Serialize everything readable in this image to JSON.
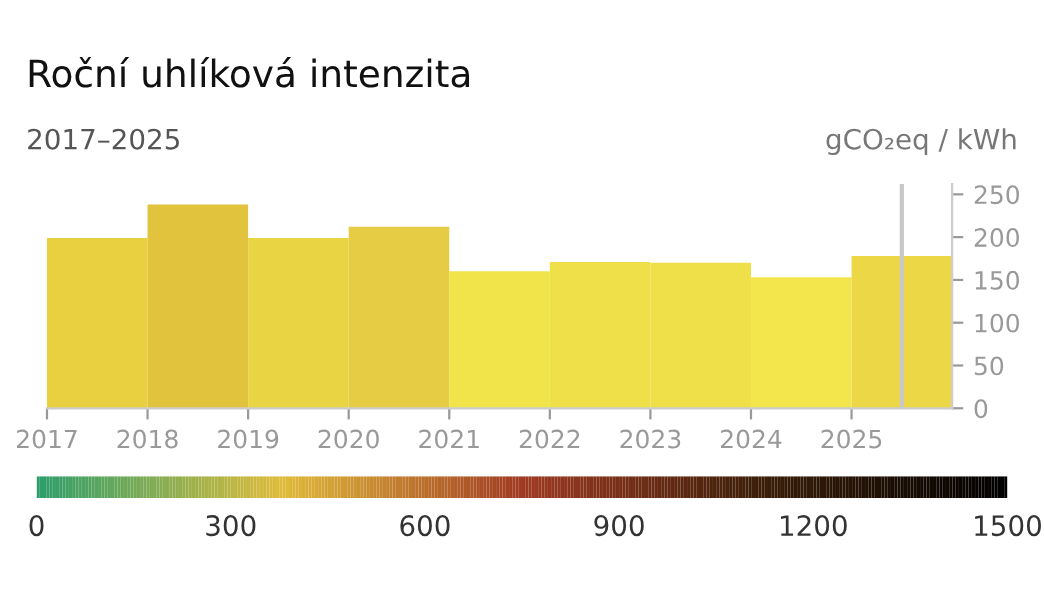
{
  "chart_data": {
    "type": "histogram",
    "title": "Roční uhlíková intenzita",
    "subtitle": "2017–2025",
    "ylabel": "gCO₂eq / kWh",
    "bins": [
      2017,
      2018,
      2019,
      2020,
      2021,
      2022,
      2023,
      2024,
      2025,
      2026
    ],
    "values": [
      199,
      238,
      199,
      212,
      160,
      171,
      170,
      153,
      178
    ],
    "colors": [
      "#e8d040",
      "#e2c33e",
      "#e9d444",
      "#e6cc44",
      "#f1e44a",
      "#efdf48",
      "#efdf48",
      "#f2e64c",
      "#ecd846"
    ],
    "xlim": [
      2017,
      2026
    ],
    "xticks": [
      2017,
      2018,
      2019,
      2020,
      2021,
      2022,
      2023,
      2024,
      2025
    ],
    "ylim": [
      0,
      262
    ],
    "yticks": [
      0,
      50,
      100,
      150,
      200,
      250
    ],
    "ref_lines": [
      {
        "axis": "x",
        "value": 2025.5,
        "color": "#c8c8c8"
      }
    ],
    "clim": [
      0,
      1500
    ],
    "cticks": [
      0,
      300,
      600,
      900,
      1200,
      1500
    ],
    "grid": false,
    "legend": false
  }
}
